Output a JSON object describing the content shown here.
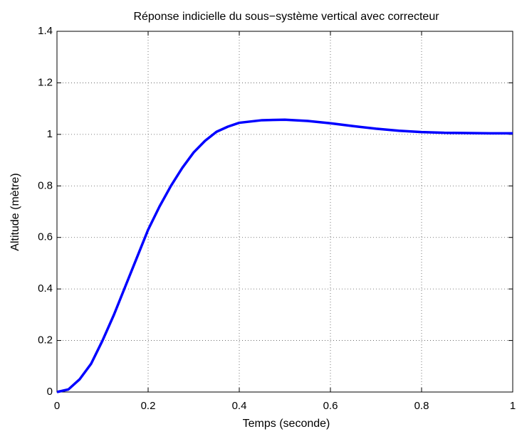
{
  "chart_data": {
    "type": "line",
    "title": "Réponse indicielle du sous−système vertical avec correcteur",
    "xlabel": "Temps (seconde)",
    "ylabel": "Altitude (mètre)",
    "x": [
      0,
      0.025,
      0.05,
      0.075,
      0.1,
      0.125,
      0.15,
      0.175,
      0.2,
      0.225,
      0.25,
      0.275,
      0.3,
      0.325,
      0.35,
      0.375,
      0.4,
      0.45,
      0.5,
      0.55,
      0.6,
      0.65,
      0.7,
      0.75,
      0.8,
      0.85,
      0.9,
      0.95,
      1.0
    ],
    "series": [
      {
        "name": "Altitude",
        "color": "#0000ff",
        "values": [
          0,
          0.01,
          0.05,
          0.11,
          0.2,
          0.3,
          0.41,
          0.52,
          0.63,
          0.72,
          0.8,
          0.87,
          0.93,
          0.975,
          1.01,
          1.03,
          1.045,
          1.055,
          1.057,
          1.052,
          1.043,
          1.032,
          1.022,
          1.014,
          1.009,
          1.006,
          1.005,
          1.004,
          1.004
        ]
      }
    ],
    "xlim": [
      0,
      1
    ],
    "ylim": [
      0,
      1.4
    ],
    "xticks": [
      0,
      0.2,
      0.4,
      0.6,
      0.8,
      1
    ],
    "yticks": [
      0,
      0.2,
      0.4,
      0.6,
      0.8,
      1,
      1.2,
      1.4
    ],
    "grid": true
  }
}
